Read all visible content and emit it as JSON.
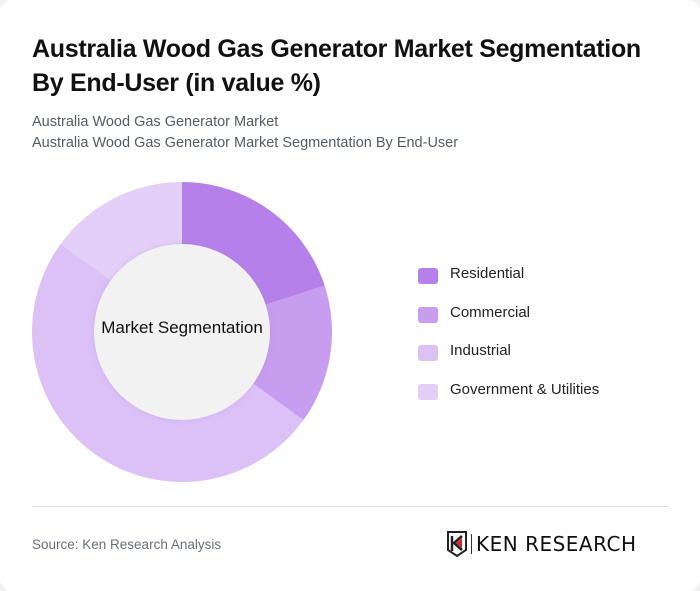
{
  "header": {
    "title": "Australia Wood Gas Generator Market Segmentation By End-User (in value %)",
    "subtitle_1": "Australia Wood Gas Generator Market",
    "subtitle_2": "Australia Wood Gas Generator Market Segmentation By End-User"
  },
  "chart": {
    "center_label": "Market Segmentation"
  },
  "legend": [
    {
      "label": "Residential",
      "color": "#b580ea"
    },
    {
      "label": "Commercial",
      "color": "#c69def"
    },
    {
      "label": "Industrial",
      "color": "#dbc1f6"
    },
    {
      "label": "Government & Utilities",
      "color": "#e3cff7"
    }
  ],
  "footer": {
    "source": "Source: Ken Research Analysis",
    "logo_text": "KEN RESEARCH"
  },
  "chart_data": {
    "type": "pie",
    "subtype": "donut",
    "title": "Australia Wood Gas Generator Market Segmentation By End-User (in value %)",
    "center_label": "Market Segmentation",
    "categories": [
      "Residential",
      "Commercial",
      "Industrial",
      "Government & Utilities"
    ],
    "values": [
      20,
      15,
      50,
      15
    ],
    "colors": [
      "#b580ea",
      "#c69def",
      "#dbc1f6",
      "#e3cff7"
    ],
    "unit": "%",
    "legend_position": "right",
    "start_angle": "top, clockwise"
  }
}
